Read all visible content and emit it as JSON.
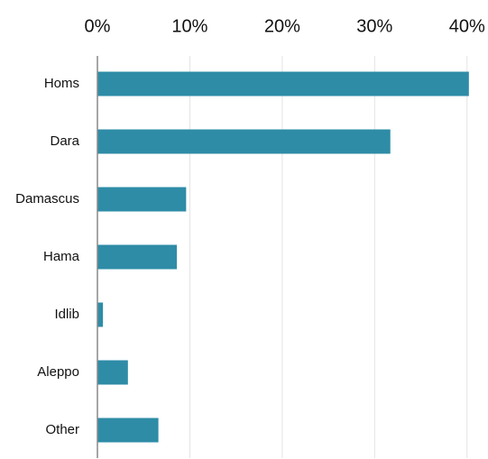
{
  "chart_data": {
    "type": "bar",
    "orientation": "horizontal",
    "categories": [
      "Homs",
      "Dara",
      "Damascus",
      "Hama",
      "Idlib",
      "Aleppo",
      "Other"
    ],
    "values": [
      40.2,
      31.7,
      9.6,
      8.6,
      0.6,
      3.3,
      6.6
    ],
    "x_ticks": [
      0,
      10,
      20,
      30,
      40
    ],
    "x_tick_labels": [
      "0%",
      "10%",
      "20%",
      "30%",
      "40%"
    ],
    "xlim": [
      0,
      41
    ],
    "x_axis_position": "top",
    "grid": "vertical",
    "legend": "none",
    "title": "",
    "xlabel": "",
    "ylabel": "",
    "colors": {
      "bar": "#2e8ca7",
      "grid": "#e3e3e3",
      "axis": "#888888"
    }
  }
}
